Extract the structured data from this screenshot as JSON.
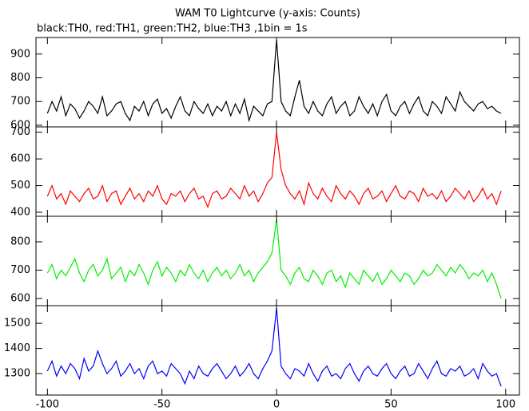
{
  "chart_data": {
    "type": "line",
    "title": "WAM T0 Lightcurve (y-axis: Counts)",
    "subtitle": "black:TH0, red:TH1, green:TH2, blue:TH3 ,1bin = 1s",
    "x": [
      -100,
      -98,
      -96,
      -94,
      -92,
      -90,
      -88,
      -86,
      -84,
      -82,
      -80,
      -78,
      -76,
      -74,
      -72,
      -70,
      -68,
      -66,
      -64,
      -62,
      -60,
      -58,
      -56,
      -54,
      -52,
      -50,
      -48,
      -46,
      -44,
      -42,
      -40,
      -38,
      -36,
      -34,
      -32,
      -30,
      -28,
      -26,
      -24,
      -22,
      -20,
      -18,
      -16,
      -14,
      -12,
      -10,
      -8,
      -6,
      -4,
      -2,
      0,
      2,
      4,
      6,
      8,
      10,
      12,
      14,
      16,
      18,
      20,
      22,
      24,
      26,
      28,
      30,
      32,
      34,
      36,
      38,
      40,
      42,
      44,
      46,
      48,
      50,
      52,
      54,
      56,
      58,
      60,
      62,
      64,
      66,
      68,
      70,
      72,
      74,
      76,
      78,
      80,
      82,
      84,
      86,
      88,
      90,
      92,
      94,
      96,
      98
    ],
    "xlim": [
      -105,
      106
    ],
    "xticks": [
      -100,
      -50,
      0,
      50,
      100
    ],
    "panels": [
      {
        "ylim": [
          593,
          970
        ],
        "yticks": [
          600,
          700,
          800,
          900
        ],
        "series": [
          {
            "color": "#000000",
            "values": [
              650,
              700,
              660,
              720,
              640,
              690,
              670,
              630,
              660,
              700,
              680,
              650,
              720,
              640,
              660,
              690,
              700,
              650,
              620,
              680,
              660,
              700,
              640,
              690,
              710,
              650,
              670,
              630,
              680,
              720,
              660,
              640,
              700,
              670,
              650,
              690,
              640,
              680,
              660,
              700,
              640,
              690,
              650,
              710,
              620,
              680,
              660,
              640,
              690,
              700,
              960,
              700,
              660,
              640,
              720,
              790,
              680,
              650,
              700,
              660,
              640,
              690,
              720,
              650,
              680,
              700,
              640,
              660,
              720,
              680,
              650,
              690,
              640,
              700,
              730,
              660,
              640,
              680,
              700,
              650,
              690,
              720,
              660,
              640,
              700,
              680,
              650,
              720,
              690,
              660,
              740,
              700,
              680,
              660,
              690,
              700,
              670,
              680,
              660,
              650
            ]
          }
        ]
      },
      {
        "ylim": [
          385,
          720
        ],
        "yticks": [
          400,
          500,
          600,
          700
        ],
        "series": [
          {
            "color": "#ff0000",
            "values": [
              460,
              500,
              450,
              470,
              430,
              480,
              460,
              440,
              470,
              490,
              450,
              460,
              500,
              440,
              470,
              480,
              430,
              460,
              490,
              450,
              470,
              440,
              480,
              460,
              500,
              450,
              430,
              470,
              460,
              480,
              440,
              470,
              490,
              450,
              460,
              420,
              470,
              480,
              450,
              460,
              490,
              470,
              450,
              500,
              460,
              480,
              440,
              470,
              510,
              530,
              700,
              560,
              500,
              470,
              450,
              480,
              430,
              510,
              470,
              450,
              490,
              460,
              440,
              500,
              470,
              450,
              480,
              460,
              430,
              470,
              490,
              450,
              460,
              480,
              440,
              470,
              500,
              460,
              450,
              480,
              470,
              440,
              490,
              460,
              470,
              450,
              480,
              440,
              460,
              490,
              470,
              450,
              480,
              440,
              460,
              490,
              450,
              470,
              430,
              480
            ]
          }
        ]
      },
      {
        "ylim": [
          575,
          890
        ],
        "yticks": [
          600,
          700,
          800
        ],
        "series": [
          {
            "color": "#00ee00",
            "values": [
              690,
              720,
              670,
              700,
              680,
              710,
              740,
              690,
              660,
              700,
              720,
              680,
              700,
              740,
              670,
              690,
              710,
              660,
              700,
              680,
              720,
              690,
              650,
              700,
              730,
              680,
              710,
              690,
              660,
              700,
              680,
              720,
              690,
              670,
              700,
              660,
              690,
              710,
              680,
              700,
              670,
              690,
              720,
              680,
              700,
              660,
              690,
              710,
              730,
              760,
              880,
              700,
              680,
              650,
              690,
              710,
              670,
              660,
              700,
              680,
              650,
              690,
              700,
              660,
              680,
              640,
              690,
              670,
              650,
              700,
              680,
              660,
              690,
              650,
              670,
              700,
              680,
              660,
              690,
              680,
              650,
              670,
              700,
              680,
              690,
              720,
              700,
              680,
              710,
              690,
              720,
              700,
              670,
              690,
              680,
              700,
              660,
              690,
              650,
              600
            ]
          }
        ]
      },
      {
        "ylim": [
          1215,
          1570
        ],
        "yticks": [
          1300,
          1400,
          1500
        ],
        "series": [
          {
            "color": "#0000ff",
            "values": [
              1310,
              1350,
              1290,
              1330,
              1300,
              1340,
              1320,
              1280,
              1360,
              1310,
              1330,
              1390,
              1340,
              1300,
              1320,
              1350,
              1290,
              1310,
              1340,
              1300,
              1320,
              1280,
              1330,
              1350,
              1300,
              1310,
              1290,
              1340,
              1320,
              1300,
              1260,
              1310,
              1280,
              1330,
              1300,
              1290,
              1320,
              1340,
              1310,
              1280,
              1300,
              1330,
              1290,
              1310,
              1340,
              1300,
              1280,
              1320,
              1350,
              1390,
              1560,
              1330,
              1300,
              1280,
              1320,
              1310,
              1290,
              1340,
              1300,
              1270,
              1310,
              1330,
              1290,
              1300,
              1280,
              1320,
              1340,
              1300,
              1270,
              1310,
              1330,
              1300,
              1290,
              1320,
              1340,
              1300,
              1280,
              1310,
              1330,
              1290,
              1300,
              1340,
              1310,
              1280,
              1320,
              1350,
              1300,
              1290,
              1320,
              1310,
              1330,
              1290,
              1300,
              1320,
              1280,
              1340,
              1310,
              1290,
              1300,
              1250
            ]
          }
        ]
      }
    ]
  }
}
